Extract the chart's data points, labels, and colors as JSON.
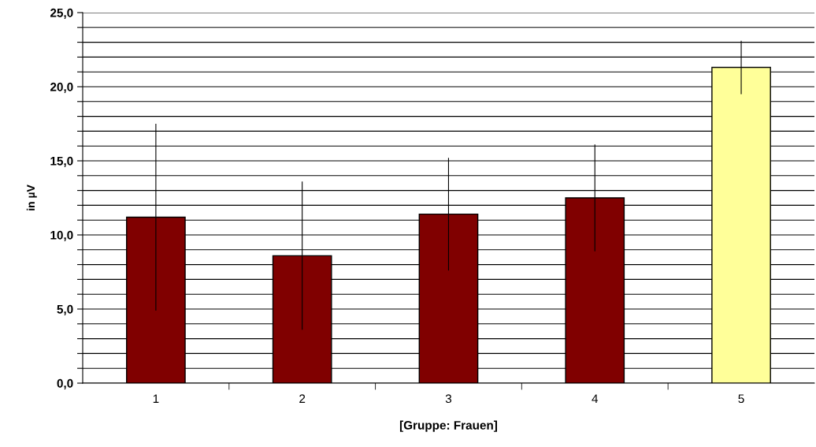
{
  "chart_data": {
    "type": "bar",
    "xlabel": "[Gruppe: Frauen]",
    "ylabel": "in µV",
    "categories": [
      "1",
      "2",
      "3",
      "4",
      "5"
    ],
    "values": [
      11.2,
      8.6,
      11.4,
      12.5,
      21.3
    ],
    "errors": [
      6.3,
      5.0,
      3.8,
      3.6,
      1.8
    ],
    "colors": [
      "#800000",
      "#800000",
      "#800000",
      "#800000",
      "#ffff99"
    ],
    "ylim": [
      0,
      25
    ],
    "yticks": [
      {
        "value": 0,
        "label": "0,0"
      },
      {
        "value": 1,
        "label": null
      },
      {
        "value": 2,
        "label": null
      },
      {
        "value": 3,
        "label": null
      },
      {
        "value": 4,
        "label": null
      },
      {
        "value": 5,
        "label": "5,0"
      },
      {
        "value": 6,
        "label": null
      },
      {
        "value": 7,
        "label": null
      },
      {
        "value": 8,
        "label": null
      },
      {
        "value": 9,
        "label": null
      },
      {
        "value": 10,
        "label": "10,0"
      },
      {
        "value": 11,
        "label": null
      },
      {
        "value": 12,
        "label": null
      },
      {
        "value": 13,
        "label": null
      },
      {
        "value": 14,
        "label": null
      },
      {
        "value": 15,
        "label": "15,0"
      },
      {
        "value": 16,
        "label": null
      },
      {
        "value": 17,
        "label": null
      },
      {
        "value": 18,
        "label": null
      },
      {
        "value": 19,
        "label": null
      },
      {
        "value": 20,
        "label": "20,0"
      },
      {
        "value": 21,
        "label": null
      },
      {
        "value": 22,
        "label": null
      },
      {
        "value": 23,
        "label": null
      },
      {
        "value": 24,
        "label": null
      },
      {
        "value": 25,
        "label": "25,0"
      }
    ],
    "grid": "y",
    "legend": false
  }
}
